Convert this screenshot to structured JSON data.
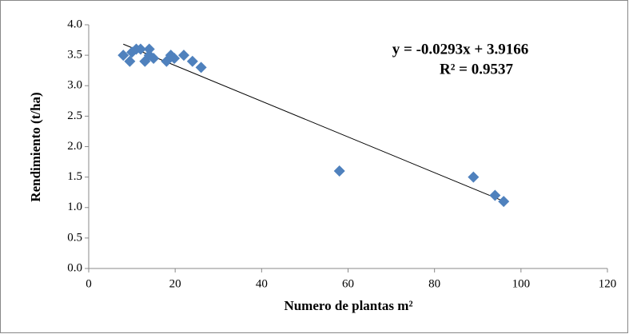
{
  "chart_data": {
    "type": "scatter",
    "x_label": "Numero de plantas m²",
    "y_label": "Rendimiento (t/ha)",
    "series": [
      {
        "color": "#4f81bd",
        "x": [
          8,
          9.5,
          10,
          11,
          12,
          13,
          14,
          14,
          15,
          18,
          19,
          19.8,
          22,
          24,
          26,
          58,
          89,
          94,
          96
        ],
        "values": [
          3.5,
          3.4,
          3.55,
          3.6,
          3.6,
          3.4,
          3.6,
          3.5,
          3.45,
          3.4,
          3.5,
          3.45,
          3.5,
          3.4,
          3.3,
          1.6,
          1.5,
          1.2,
          1.1
        ]
      }
    ],
    "trendline": {
      "slope": -0.0293,
      "intercept": 3.9166,
      "color": "#000000",
      "equation": "y = -0.0293x + 3.9166",
      "r_squared": "R² = 0.9537"
    },
    "xlim": [
      0,
      120
    ],
    "xticks": [
      0,
      20,
      40,
      60,
      80,
      100,
      120
    ],
    "ylim": [
      0,
      4
    ],
    "yticks": [
      {
        "value": 0,
        "label": "0.0"
      },
      0.5,
      {
        "value": 1,
        "label": "1.0"
      },
      1.5,
      {
        "value": 2,
        "label": "2.0"
      },
      2.5,
      {
        "value": 3,
        "label": "3.0"
      },
      3.5,
      {
        "value": 4,
        "label": "4.0"
      }
    ],
    "grid": false
  }
}
